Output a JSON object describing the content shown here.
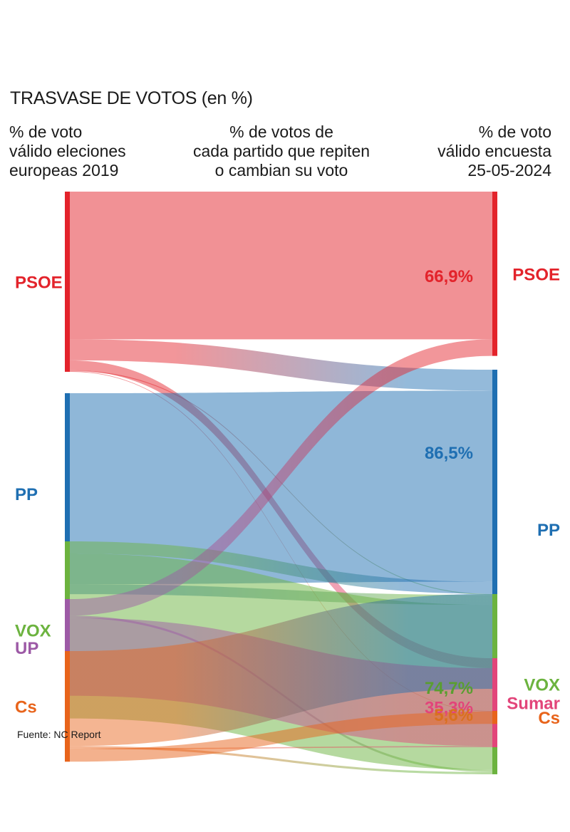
{
  "title": {
    "main": "TRASVASE DE VOTOS",
    "sub": "(en %)"
  },
  "headers": {
    "left": [
      "% de voto",
      "válido eleciones",
      "europeas 2019"
    ],
    "middle": [
      "% de votos de",
      "cada partido que repiten",
      "o cambian su voto"
    ],
    "right": [
      "% de voto",
      "válido encuesta",
      "25-05-2024"
    ]
  },
  "source": "Fuente: NC Report",
  "colors": {
    "PSOE": "#e3232b",
    "PP": "#1f6fb2",
    "VOX": "#6cb33f",
    "UP": "#9d5aa6",
    "Sumar": "#e2457a",
    "Cs": "#e8641b"
  },
  "chart_data": {
    "type": "sankey",
    "left_nodes": [
      {
        "id": "PSOE",
        "label": "PSOE"
      },
      {
        "id": "PP",
        "label": "PP"
      },
      {
        "id": "VOX",
        "label": "VOX"
      },
      {
        "id": "UP",
        "label": "UP"
      },
      {
        "id": "Cs",
        "label": "Cs"
      }
    ],
    "right_nodes": [
      {
        "id": "PSOE",
        "label": "PSOE",
        "retention_label": "66,9%"
      },
      {
        "id": "PP",
        "label": "PP",
        "retention_label": "86,5%"
      },
      {
        "id": "VOX",
        "label": "VOX",
        "retention_label": "74,7%"
      },
      {
        "id": "Sumar",
        "label": "Sumar",
        "retention_label": "35,3%"
      },
      {
        "id": "Cs",
        "label": "Cs",
        "retention_label": "5,6%"
      }
    ],
    "flows": [
      {
        "from": "PSOE",
        "to": "PSOE",
        "value": 66.9
      },
      {
        "from": "PSOE",
        "to": "PP",
        "value": 9.5
      },
      {
        "from": "PSOE",
        "to": "Sumar",
        "value": 4.5
      },
      {
        "from": "PSOE",
        "to": "VOX",
        "value": 0.4
      },
      {
        "from": "PSOE",
        "to": "Cs",
        "value": 0.3
      },
      {
        "from": "PP",
        "to": "PP",
        "value": 86.5
      },
      {
        "from": "PP",
        "to": "VOX",
        "value": 4.5
      },
      {
        "from": "VOX",
        "to": "PP",
        "value": 5.5
      },
      {
        "from": "VOX",
        "to": "VOX",
        "value": 74.7
      },
      {
        "from": "UP",
        "to": "PSOE",
        "value": 7.5
      },
      {
        "from": "UP",
        "to": "VOX",
        "value": 1.0
      },
      {
        "from": "UP",
        "to": "Sumar",
        "value": 35.3
      },
      {
        "from": "Cs",
        "to": "PP",
        "value": 43.0
      },
      {
        "from": "Cs",
        "to": "VOX",
        "value": 1.0
      },
      {
        "from": "Cs",
        "to": "Sumar",
        "value": 0.5
      },
      {
        "from": "Cs",
        "to": "Cs",
        "value": 5.6
      }
    ]
  }
}
